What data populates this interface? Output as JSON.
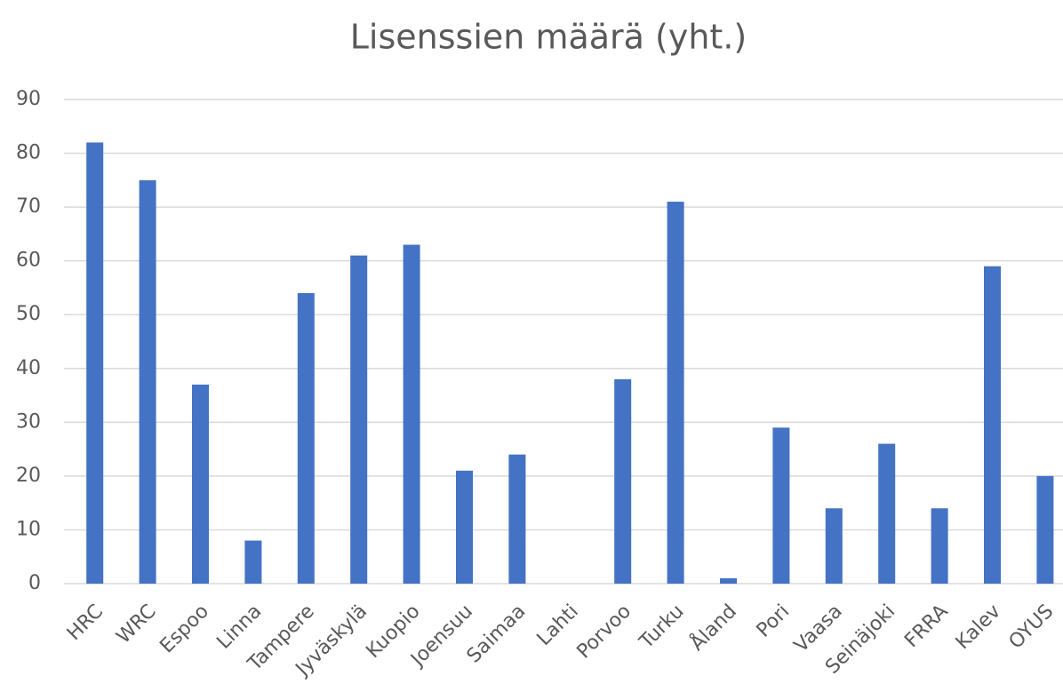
{
  "chart_data": {
    "type": "bar",
    "title": "Lisenssien määrä (yht.)",
    "categories": [
      "HRC",
      "WRC",
      "Espoo",
      "Linna",
      "Tampere",
      "Jyväskylä",
      "Kuopio",
      "Joensuu",
      "Saimaa",
      "Lahti",
      "Porvoo",
      "Turku",
      "Åland",
      "Pori",
      "Vaasa",
      "Seinäjoki",
      "FRRA",
      "Kalev",
      "OYUS"
    ],
    "values": [
      82,
      75,
      37,
      8,
      54,
      61,
      63,
      21,
      24,
      0,
      38,
      71,
      1,
      29,
      14,
      26,
      14,
      59,
      20
    ],
    "color": "#4472c4",
    "ylim": [
      0,
      90
    ],
    "yticks": [
      0,
      10,
      20,
      30,
      40,
      50,
      60,
      70,
      80,
      90
    ],
    "grid": true
  }
}
